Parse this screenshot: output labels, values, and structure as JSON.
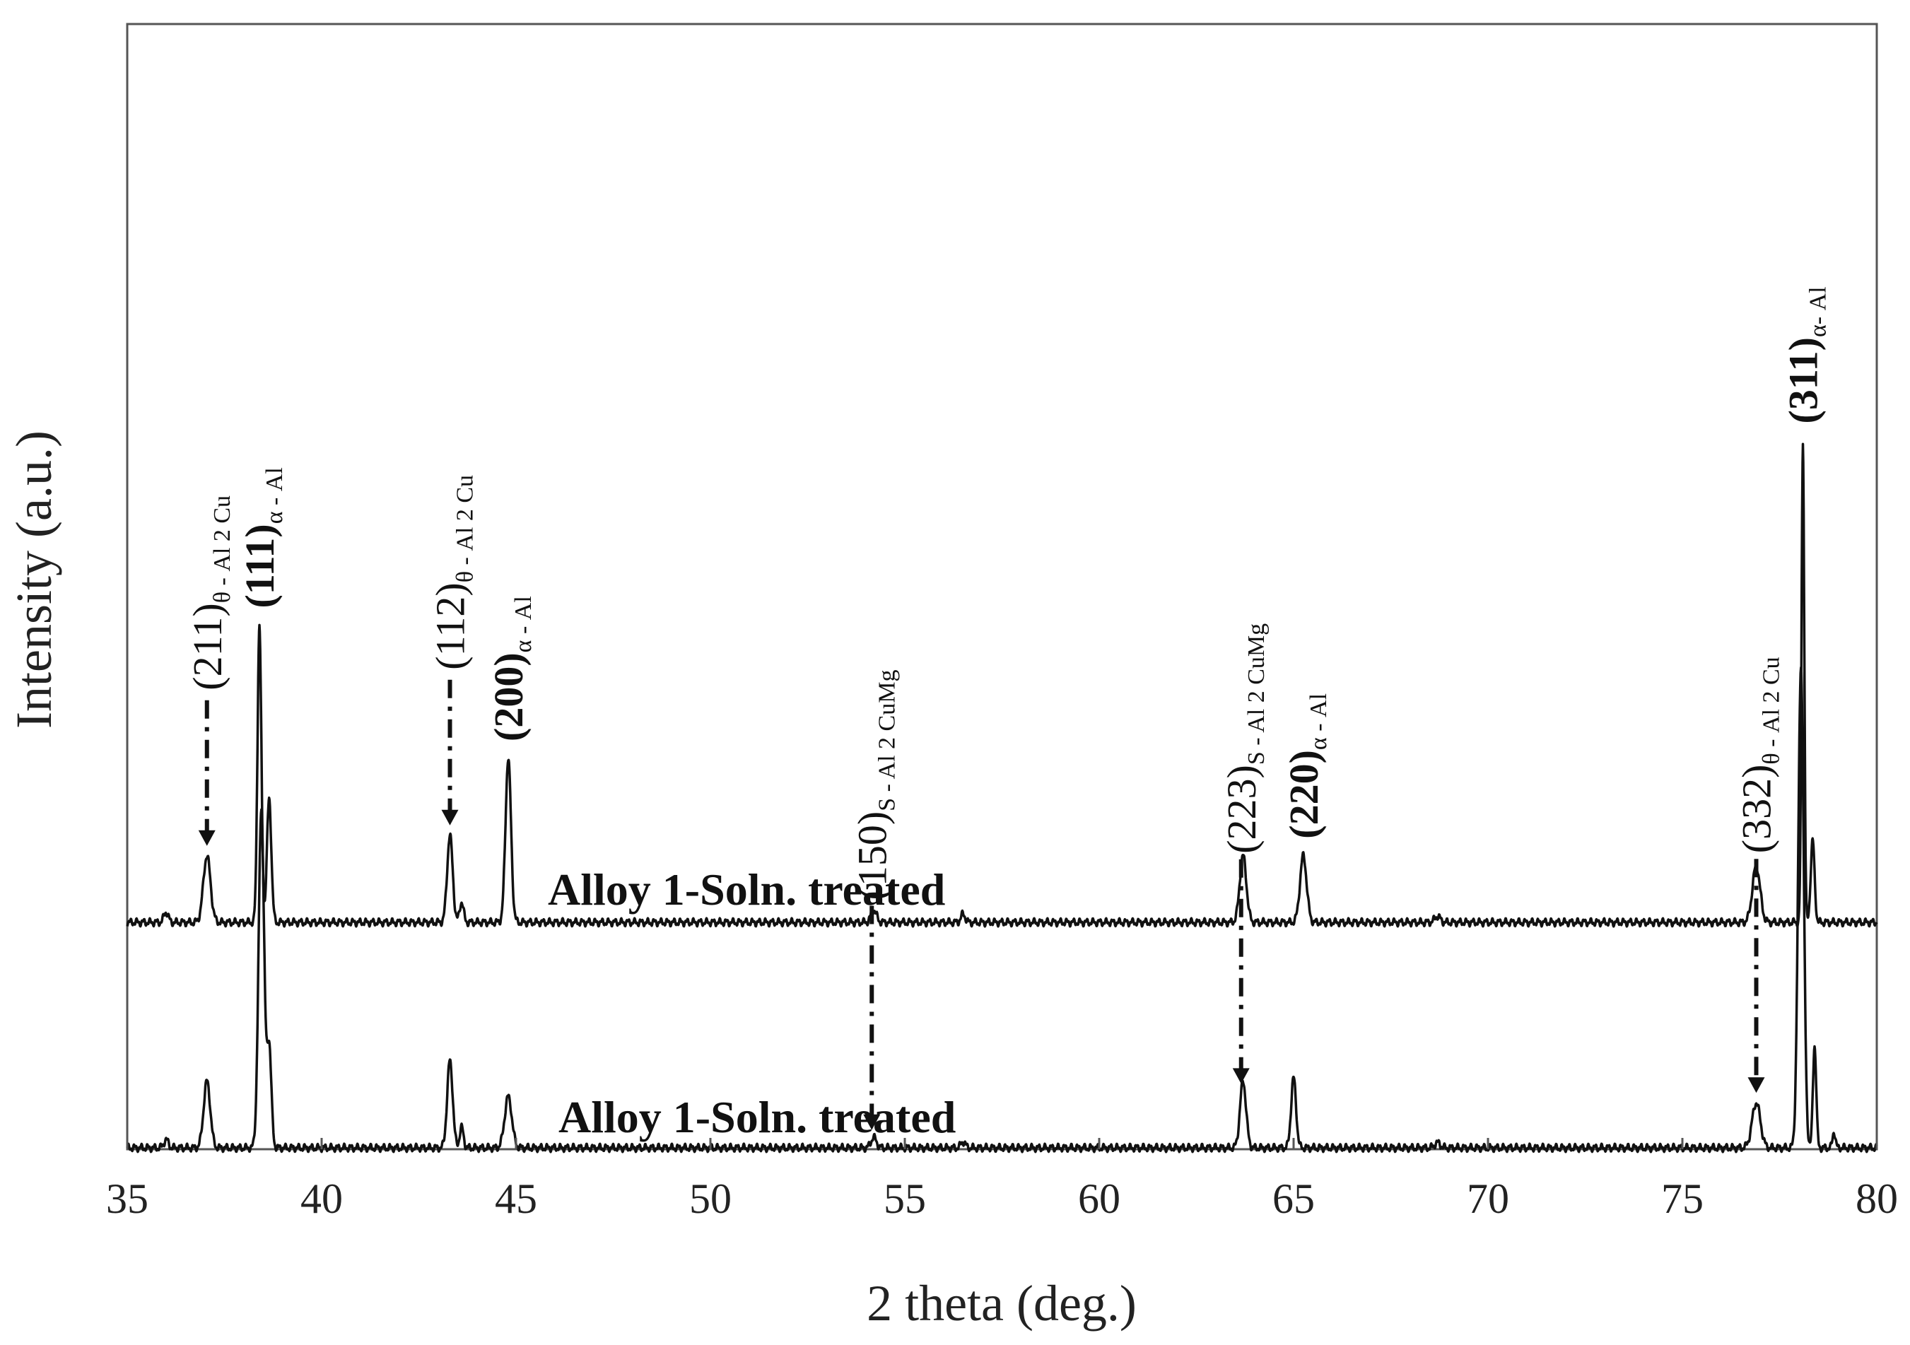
{
  "chart_data": {
    "type": "line",
    "title": "",
    "xlabel": "2 theta (deg.)",
    "ylabel": "Intensity (a.u.)",
    "xlim": [
      35,
      80
    ],
    "xticks": [
      35,
      40,
      45,
      50,
      55,
      60,
      65,
      70,
      75,
      80
    ],
    "grid": false,
    "yticks_shown": false,
    "series": [
      {
        "name": "Alloy 1-Soln. treated",
        "baseline": 0.22,
        "peaks": [
          {
            "x": 36.0,
            "h": 0.01,
            "w": 0.08
          },
          {
            "x": 37.05,
            "h": 0.065,
            "w": 0.13
          },
          {
            "x": 38.4,
            "h": 0.29,
            "w": 0.07
          },
          {
            "x": 38.65,
            "h": 0.12,
            "w": 0.08
          },
          {
            "x": 43.3,
            "h": 0.085,
            "w": 0.1
          },
          {
            "x": 43.6,
            "h": 0.02,
            "w": 0.07
          },
          {
            "x": 44.8,
            "h": 0.16,
            "w": 0.1
          },
          {
            "x": 54.2,
            "h": 0.012,
            "w": 0.1
          },
          {
            "x": 56.5,
            "h": 0.008,
            "w": 0.08
          },
          {
            "x": 63.7,
            "h": 0.065,
            "w": 0.12
          },
          {
            "x": 65.25,
            "h": 0.065,
            "w": 0.12
          },
          {
            "x": 68.7,
            "h": 0.006,
            "w": 0.1
          },
          {
            "x": 76.9,
            "h": 0.055,
            "w": 0.14
          },
          {
            "x": 78.1,
            "h": 0.47,
            "w": 0.05
          },
          {
            "x": 78.35,
            "h": 0.08,
            "w": 0.07
          }
        ]
      },
      {
        "name": "Alloy 1-Soln. treated",
        "baseline": 0.0,
        "peaks": [
          {
            "x": 36.0,
            "h": 0.008,
            "w": 0.08
          },
          {
            "x": 37.05,
            "h": 0.065,
            "w": 0.12
          },
          {
            "x": 38.45,
            "h": 0.33,
            "w": 0.1
          },
          {
            "x": 38.65,
            "h": 0.1,
            "w": 0.08
          },
          {
            "x": 43.3,
            "h": 0.085,
            "w": 0.1
          },
          {
            "x": 43.6,
            "h": 0.02,
            "w": 0.07
          },
          {
            "x": 44.8,
            "h": 0.05,
            "w": 0.13
          },
          {
            "x": 54.2,
            "h": 0.01,
            "w": 0.1
          },
          {
            "x": 56.5,
            "h": 0.006,
            "w": 0.08
          },
          {
            "x": 63.7,
            "h": 0.065,
            "w": 0.11
          },
          {
            "x": 65.0,
            "h": 0.068,
            "w": 0.09
          },
          {
            "x": 68.7,
            "h": 0.005,
            "w": 0.1
          },
          {
            "x": 76.9,
            "h": 0.044,
            "w": 0.15
          },
          {
            "x": 78.05,
            "h": 0.47,
            "w": 0.1
          },
          {
            "x": 78.4,
            "h": 0.1,
            "w": 0.06
          },
          {
            "x": 78.9,
            "h": 0.016,
            "w": 0.05
          }
        ]
      }
    ],
    "annotations": [
      {
        "main": "(211)",
        "sub": "θ - Al 2 Cu",
        "x": 37.05,
        "bold": false,
        "arrow": true
      },
      {
        "main": "(111)",
        "sub": "α - Al",
        "x": 38.4,
        "bold": true,
        "arrow": false
      },
      {
        "main": "(112)",
        "sub": "θ - Al 2 Cu",
        "x": 43.3,
        "bold": false,
        "arrow": true
      },
      {
        "main": "(200)",
        "sub": "α - Al",
        "x": 44.8,
        "bold": true,
        "arrow": false
      },
      {
        "main": "(150)",
        "sub": "S - Al 2 CuMg",
        "x": 54.15,
        "bold": false,
        "arrow": true
      },
      {
        "main": "(223)",
        "sub": "S - Al 2 CuMg",
        "x": 63.65,
        "bold": false,
        "arrow": true
      },
      {
        "main": "(220)",
        "sub": "α - Al",
        "x": 65.25,
        "bold": true,
        "arrow": false
      },
      {
        "main": "(332)",
        "sub": "θ - Al 2 Cu",
        "x": 76.9,
        "bold": false,
        "arrow": true
      },
      {
        "main": "(311)",
        "sub": "α- Al",
        "x": 78.1,
        "bold": true,
        "arrow": false
      }
    ]
  }
}
